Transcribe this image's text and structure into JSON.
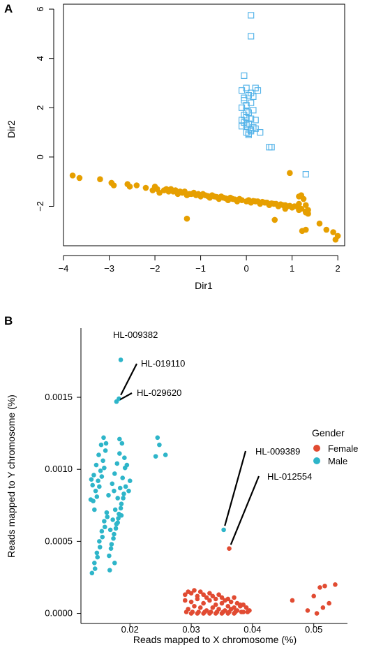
{
  "colors": {
    "orange": "#E69F00",
    "blue_square": "#56B4E9",
    "female": "#E14B32",
    "male": "#2EB5C9",
    "axis": "#000000"
  },
  "chart_data": [
    {
      "type": "scatter",
      "panel_label": "A",
      "xlabel": "Dir1",
      "ylabel": "Dir2",
      "xlim": [
        -4,
        2.15
      ],
      "ylim": [
        -3.6,
        6.2
      ],
      "xticks": [
        -4,
        -3,
        -2,
        -1,
        0,
        1,
        2
      ],
      "xtick_labels": [
        "−4",
        "−3",
        "−2",
        "−1",
        "0",
        "1",
        "2"
      ],
      "yticks": [
        -2,
        0,
        2,
        4,
        6
      ],
      "ytick_labels": [
        "−2",
        "0",
        "2",
        "4",
        "6"
      ],
      "grid": false,
      "series": [
        {
          "marker": "filled-circle",
          "color": "#E69F00",
          "x": [
            -3.8,
            -3.65,
            -3.2,
            -2.95,
            -2.9,
            -2.6,
            -2.55,
            -2.4,
            -2.2,
            -2.05,
            -1.95,
            -1.9,
            -1.8,
            -1.7,
            -1.6,
            -1.5,
            -1.4,
            -1.3,
            -1.25,
            -1.2,
            -1.1,
            -1.0,
            -0.9,
            -0.8,
            -0.7,
            -0.6,
            -0.5,
            -0.4,
            -0.3,
            -0.2,
            -0.1,
            0.0,
            0.1,
            0.2,
            0.3,
            0.4,
            0.5,
            0.6,
            0.7,
            0.8,
            0.9,
            1.0,
            1.1,
            1.2,
            1.25,
            1.3,
            1.35,
            -1.75,
            -1.55,
            -1.45,
            -1.15,
            -0.95,
            -0.75,
            -0.55,
            -0.35,
            -0.15,
            0.05,
            0.25,
            0.45,
            0.65,
            0.85,
            1.05,
            -2.0,
            -1.65,
            -1.35,
            -1.05,
            -0.85,
            -0.65,
            -0.45,
            -0.25,
            0.15,
            0.35,
            0.55,
            0.75,
            0.95,
            1.15,
            1.2,
            1.3,
            1.35,
            0.85,
            1.15,
            1.3,
            1.6,
            1.75,
            1.9,
            1.95,
            2.0,
            -1.3,
            0.62,
            1.22,
            1.3,
            0.95,
            1.15
          ],
          "y": [
            -0.75,
            -0.85,
            -0.9,
            -1.05,
            -1.15,
            -1.1,
            -1.2,
            -1.15,
            -1.25,
            -1.35,
            -1.3,
            -1.45,
            -1.35,
            -1.4,
            -1.4,
            -1.5,
            -1.45,
            -1.55,
            -1.5,
            -1.5,
            -1.55,
            -1.6,
            -1.55,
            -1.65,
            -1.6,
            -1.7,
            -1.65,
            -1.75,
            -1.7,
            -1.8,
            -1.75,
            -1.8,
            -1.85,
            -1.8,
            -1.9,
            -1.85,
            -1.95,
            -1.9,
            -2.0,
            -1.95,
            -2.0,
            -2.05,
            -2.0,
            -2.1,
            -1.7,
            -2.2,
            -2.3,
            -1.3,
            -1.35,
            -1.4,
            -1.45,
            -1.5,
            -1.55,
            -1.6,
            -1.65,
            -1.7,
            -1.75,
            -1.8,
            -1.85,
            -1.9,
            -1.95,
            -2.0,
            -1.2,
            -1.3,
            -1.4,
            -1.5,
            -1.58,
            -1.62,
            -1.68,
            -1.72,
            -1.78,
            -1.82,
            -1.88,
            -1.92,
            -1.98,
            -1.9,
            -1.55,
            -1.95,
            -2.15,
            -2.1,
            -2.15,
            -2.25,
            -2.7,
            -2.95,
            -3.05,
            -3.35,
            -3.2,
            -2.5,
            -2.55,
            -3.0,
            -2.95,
            -0.65,
            -1.6
          ]
        },
        {
          "marker": "open-square",
          "color": "#56B4E9",
          "x": [
            0.1,
            0.1,
            -0.05,
            -0.1,
            0.0,
            0.05,
            0.2,
            -0.05,
            0.0,
            0.1,
            -0.1,
            0.15,
            0.05,
            -0.05,
            0.0,
            0.1,
            0.2,
            -0.05,
            0.05,
            0.0,
            0.15,
            0.1,
            -0.1,
            0.0,
            0.05,
            0.1,
            0.2,
            0.3,
            0.5,
            0.55,
            1.3,
            -0.05,
            0.1,
            0.0,
            0.15,
            0.25,
            -0.1,
            0.05
          ],
          "y": [
            5.75,
            4.9,
            3.3,
            2.7,
            2.8,
            2.5,
            2.8,
            2.3,
            2.1,
            2.2,
            2.0,
            1.9,
            1.8,
            1.7,
            1.6,
            1.55,
            1.5,
            1.4,
            1.35,
            1.3,
            1.2,
            1.1,
            1.25,
            1.0,
            0.95,
            1.05,
            1.15,
            1.0,
            0.4,
            0.4,
            -0.7,
            2.4,
            2.6,
            1.85,
            2.45,
            2.7,
            1.5,
            0.9
          ]
        }
      ]
    },
    {
      "type": "scatter",
      "panel_label": "B",
      "xlabel": "Reads mapped to X chromosome (%)",
      "ylabel": "Reads mapped to Y chromosome (%)",
      "xlim": [
        0.012,
        0.0555
      ],
      "ylim": [
        -7e-05,
        0.00198
      ],
      "xticks": [
        0.02,
        0.03,
        0.04,
        0.05
      ],
      "xtick_labels": [
        "0.02",
        "0.03",
        "0.04",
        "0.05"
      ],
      "yticks": [
        0.0,
        0.0005,
        0.001,
        0.0015
      ],
      "ytick_labels": [
        "0.0000",
        "0.0005",
        "0.0010",
        "0.0015"
      ],
      "grid": false,
      "legend": {
        "title": "Gender",
        "position": "right",
        "entries": [
          "Female",
          "Male"
        ]
      },
      "series": [
        {
          "name": "Female",
          "color": "#E14B32",
          "x": [
            0.029,
            0.0295,
            0.03,
            0.0305,
            0.031,
            0.0315,
            0.032,
            0.0325,
            0.033,
            0.0335,
            0.034,
            0.0345,
            0.035,
            0.0355,
            0.036,
            0.0365,
            0.037,
            0.0375,
            0.038,
            0.0385,
            0.039,
            0.0395,
            0.029,
            0.03,
            0.031,
            0.032,
            0.033,
            0.034,
            0.035,
            0.036,
            0.037,
            0.038,
            0.0295,
            0.0305,
            0.0315,
            0.0325,
            0.0335,
            0.0345,
            0.0355,
            0.0365,
            0.0375,
            0.0385,
            0.03,
            0.031,
            0.032,
            0.033,
            0.034,
            0.035,
            0.036,
            0.037,
            0.0292,
            0.0302,
            0.0312,
            0.0322,
            0.0332,
            0.0342,
            0.0352,
            0.0362,
            0.0372,
            0.0382,
            0.0392,
            0.0362,
            0.0465,
            0.049,
            0.05,
            0.0505,
            0.051,
            0.0515,
            0.0525,
            0.0535,
            0.0518
          ],
          "y": [
            0.00013,
            0.00015,
            0.00014,
            0.00016,
            0.00012,
            0.00015,
            0.00013,
            0.00011,
            0.00014,
            0.00012,
            0.0001,
            0.00013,
            0.00011,
            9e-05,
            0.0001,
            8e-05,
            0.00011,
            7e-05,
            5e-05,
            6e-05,
            4e-05,
            2e-05,
            9e-05,
            8e-05,
            0.0001,
            7e-05,
            9e-05,
            6e-05,
            7e-05,
            5e-05,
            4e-05,
            6e-05,
            3e-05,
            5e-05,
            4e-05,
            2e-05,
            4e-05,
            3e-05,
            2e-05,
            3e-05,
            2e-05,
            1e-05,
            0.0,
            0.0,
            0.0,
            0.0,
            0.0,
            0.0,
            0.0,
            0.0,
            1e-05,
            1e-05,
            1e-05,
            1e-05,
            1e-05,
            1e-05,
            1e-05,
            1e-05,
            1e-05,
            1e-05,
            1e-05,
            0.00045,
            9e-05,
            2e-05,
            0.00012,
            0.0,
            0.00018,
            4e-05,
            7e-05,
            0.0002,
            0.00019
          ]
        },
        {
          "name": "Male",
          "color": "#2EB5C9",
          "x": [
            0.0185,
            0.0178,
            0.0182,
            0.0245,
            0.0248,
            0.0242,
            0.0258,
            0.0353,
            0.0138,
            0.0142,
            0.0146,
            0.015,
            0.0154,
            0.0158,
            0.0162,
            0.014,
            0.0144,
            0.0148,
            0.0152,
            0.0156,
            0.016,
            0.0143,
            0.0147,
            0.0151,
            0.0155,
            0.0159,
            0.0163,
            0.0139,
            0.0141,
            0.0145,
            0.0149,
            0.0153,
            0.0157,
            0.0161,
            0.0142,
            0.0146,
            0.015,
            0.0154,
            0.0158,
            0.0136,
            0.0137,
            0.0166,
            0.017,
            0.0174,
            0.0178,
            0.0182,
            0.0186,
            0.019,
            0.0168,
            0.0172,
            0.0176,
            0.018,
            0.0184,
            0.0188,
            0.0192,
            0.0169,
            0.0173,
            0.0177,
            0.0181,
            0.0185,
            0.0189,
            0.0193,
            0.0171,
            0.0175,
            0.0179,
            0.0183,
            0.0187,
            0.0191,
            0.0195,
            0.0167,
            0.0175,
            0.018,
            0.0165,
            0.0198,
            0.02,
            0.0183,
            0.0174,
            0.0186
          ],
          "y": [
            0.00176,
            0.00147,
            0.00149,
            0.00122,
            0.00117,
            0.00109,
            0.0011,
            0.00058,
            0.00028,
            0.00035,
            0.00042,
            0.0005,
            0.00057,
            0.00064,
            0.0007,
            0.00078,
            0.00085,
            0.00092,
            0.00099,
            0.00106,
            0.00113,
            0.00031,
            0.00039,
            0.00046,
            0.00053,
            0.0006,
            0.00067,
            0.00089,
            0.00096,
            0.00103,
            0.0011,
            0.00117,
            0.00122,
            0.00118,
            0.00072,
            0.00081,
            0.00088,
            0.00095,
            0.00101,
            0.00079,
            0.00093,
            0.0004,
            0.00048,
            0.00055,
            0.00062,
            0.00069,
            0.00076,
            0.00083,
            0.00058,
            0.00065,
            0.00072,
            0.0008,
            0.00087,
            0.00094,
            0.00101,
            0.00045,
            0.00052,
            0.00059,
            0.00066,
            0.00073,
            0.0008,
            0.00088,
            0.0009,
            0.00097,
            0.00104,
            0.00111,
            0.00118,
            0.00108,
            0.00103,
            0.0003,
            0.00035,
            0.00063,
            0.00082,
            0.00085,
            0.00092,
            0.00121,
            0.00085,
            0.00068
          ]
        }
      ],
      "annotations": [
        {
          "label": "HL-009382",
          "x": 0.0185,
          "y": 0.00176
        },
        {
          "label": "HL-019110",
          "x": 0.0182,
          "y": 0.00149
        },
        {
          "label": "HL-029620",
          "x": 0.0178,
          "y": 0.00147
        },
        {
          "label": "HL-009389",
          "x": 0.0353,
          "y": 0.00058
        },
        {
          "label": "HL-012554",
          "x": 0.0362,
          "y": 0.00045
        }
      ]
    }
  ]
}
